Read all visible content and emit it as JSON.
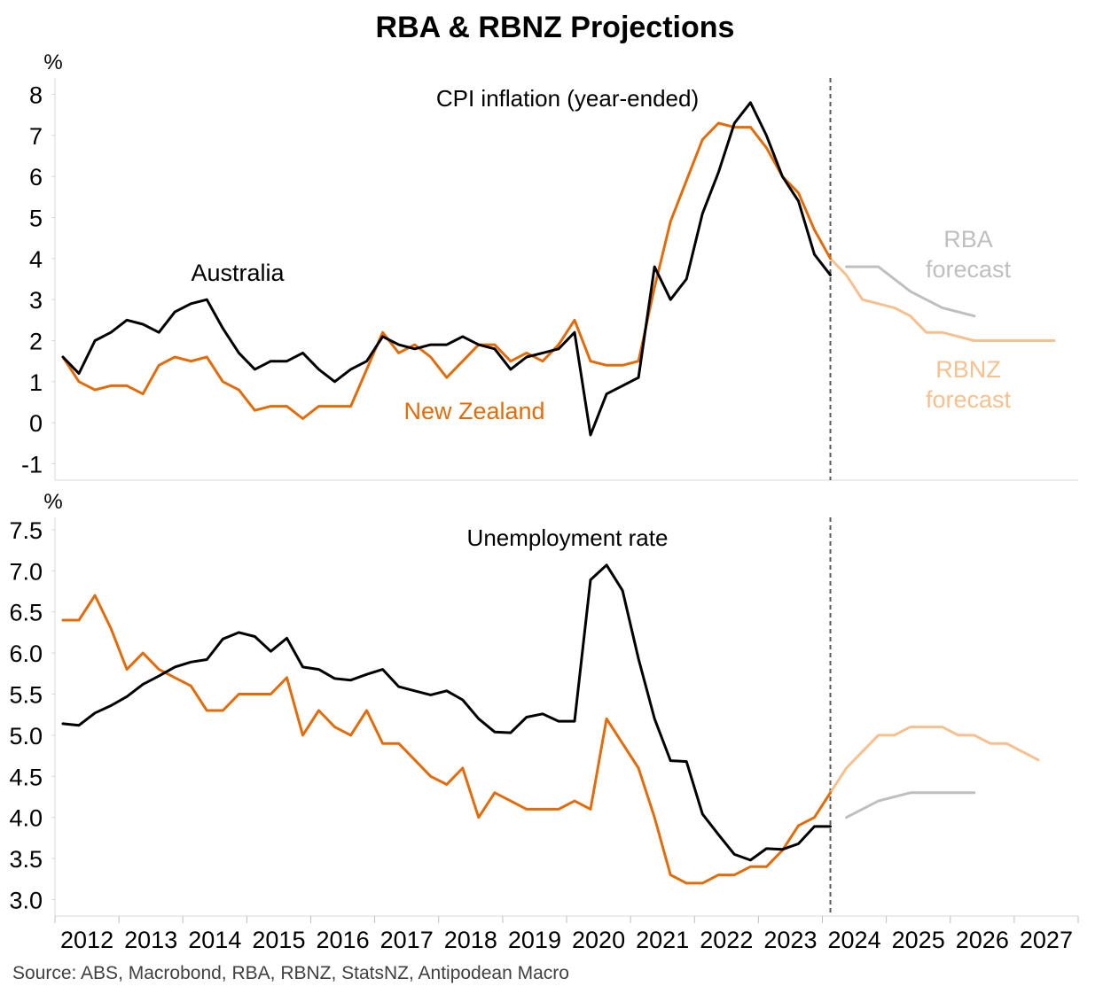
{
  "title": "RBA & RBNZ Projections",
  "source": "Source: ABS, Macrobond, RBA, RBNZ, StatsNZ, Antipodean Macro",
  "colors": {
    "australia": "#000000",
    "new_zealand": "#e36c0a",
    "rba_forecast": "#bfbfbf",
    "rbnz_forecast": "#f6c08f",
    "divider": "#595959",
    "axis": "#d9d9d9"
  },
  "x_tick_labels": [
    "2012",
    "2013",
    "2014",
    "2015",
    "2016",
    "2017",
    "2018",
    "2019",
    "2020",
    "2021",
    "2022",
    "2023",
    "2024",
    "2025",
    "2026",
    "2027"
  ],
  "chart_data": [
    {
      "type": "line",
      "title": "CPI inflation (year-ended)",
      "unit": "%",
      "xlim": [
        2011.875,
        2027.875
      ],
      "ylim": [
        -1.4,
        8.4
      ],
      "yticks": [
        "-1",
        "0",
        "1",
        "2",
        "3",
        "4",
        "5",
        "6",
        "7",
        "8"
      ],
      "ytick_values": [
        -1,
        0,
        1,
        2,
        3,
        4,
        5,
        6,
        7,
        8
      ],
      "forecast_start": 2024.0,
      "series": [
        {
          "name": "Australia",
          "color": "#000000",
          "start": 2012.0,
          "step": 0.25,
          "values": [
            1.6,
            1.2,
            2.0,
            2.2,
            2.5,
            2.4,
            2.2,
            2.7,
            2.9,
            3.0,
            2.3,
            1.7,
            1.3,
            1.5,
            1.5,
            1.7,
            1.3,
            1.0,
            1.3,
            1.5,
            2.1,
            1.9,
            1.8,
            1.9,
            1.9,
            2.1,
            1.9,
            1.8,
            1.3,
            1.6,
            1.7,
            1.8,
            2.2,
            -0.3,
            0.7,
            0.9,
            1.1,
            3.8,
            3.0,
            3.5,
            5.1,
            6.1,
            7.3,
            7.8,
            7.0,
            6.0,
            5.4,
            4.1,
            3.6
          ]
        },
        {
          "name": "New Zealand",
          "color": "#e36c0a",
          "start": 2012.0,
          "step": 0.25,
          "values": [
            1.6,
            1.0,
            0.8,
            0.9,
            0.9,
            0.7,
            1.4,
            1.6,
            1.5,
            1.6,
            1.0,
            0.8,
            0.3,
            0.4,
            0.4,
            0.1,
            0.4,
            0.4,
            0.4,
            1.3,
            2.2,
            1.7,
            1.9,
            1.6,
            1.1,
            1.5,
            1.9,
            1.9,
            1.5,
            1.7,
            1.5,
            1.9,
            2.5,
            1.5,
            1.4,
            1.4,
            1.5,
            3.3,
            4.9,
            5.9,
            6.9,
            7.3,
            7.2,
            7.2,
            6.7,
            6.0,
            5.6,
            4.7,
            4.0
          ]
        },
        {
          "name": "RBA forecast",
          "color": "#bfbfbf",
          "start": 2024.25,
          "step": 0.5,
          "values": [
            3.8,
            3.8,
            3.2,
            2.8,
            2.6
          ]
        },
        {
          "name": "RBNZ forecast",
          "color": "#f6c08f",
          "start": 2024.0,
          "step": 0.25,
          "values": [
            4.0,
            3.6,
            3.0,
            2.9,
            2.8,
            2.6,
            2.2,
            2.2,
            2.1,
            2.0,
            2.0,
            2.0,
            2.0,
            2.0,
            2.0
          ]
        }
      ],
      "labels": {
        "australia": "Australia",
        "new_zealand": "New Zealand",
        "rba_line1": "RBA",
        "rba_line2": "forecast",
        "rbnz_line1": "RBNZ",
        "rbnz_line2": "forecast"
      }
    },
    {
      "type": "line",
      "title": "Unemployment rate",
      "unit": "%",
      "xlim": [
        2011.875,
        2027.875
      ],
      "ylim": [
        2.8,
        7.65
      ],
      "yticks": [
        "3.0",
        "3.5",
        "4.0",
        "4.5",
        "5.0",
        "5.5",
        "6.0",
        "6.5",
        "7.0",
        "7.5"
      ],
      "ytick_values": [
        3.0,
        3.5,
        4.0,
        4.5,
        5.0,
        5.5,
        6.0,
        6.5,
        7.0,
        7.5
      ],
      "forecast_start": 2024.0,
      "series": [
        {
          "name": "Australia",
          "color": "#000000",
          "start": 2012.0,
          "step": 0.25,
          "values": [
            5.14,
            5.12,
            5.27,
            5.36,
            5.47,
            5.62,
            5.72,
            5.83,
            5.89,
            5.92,
            6.17,
            6.25,
            6.2,
            6.02,
            6.18,
            5.83,
            5.8,
            5.69,
            5.67,
            5.74,
            5.8,
            5.59,
            5.54,
            5.49,
            5.54,
            5.43,
            5.2,
            5.04,
            5.03,
            5.22,
            5.26,
            5.17,
            5.17,
            6.89,
            7.07,
            6.76,
            5.93,
            5.2,
            4.69,
            4.68,
            4.04,
            3.79,
            3.55,
            3.48,
            3.62,
            3.61,
            3.68,
            3.89,
            3.89
          ]
        },
        {
          "name": "New Zealand",
          "color": "#e36c0a",
          "start": 2012.0,
          "step": 0.25,
          "values": [
            6.4,
            6.4,
            6.7,
            6.3,
            5.8,
            6.0,
            5.8,
            5.7,
            5.6,
            5.3,
            5.3,
            5.5,
            5.5,
            5.5,
            5.7,
            5.0,
            5.3,
            5.1,
            5.0,
            5.3,
            4.9,
            4.9,
            4.7,
            4.5,
            4.4,
            4.6,
            4.0,
            4.3,
            4.2,
            4.1,
            4.1,
            4.1,
            4.2,
            4.1,
            5.2,
            4.9,
            4.6,
            4.0,
            3.3,
            3.2,
            3.2,
            3.3,
            3.3,
            3.4,
            3.4,
            3.6,
            3.9,
            4.0,
            4.3
          ]
        },
        {
          "name": "RBA forecast",
          "color": "#bfbfbf",
          "start": 2024.25,
          "step": 0.5,
          "values": [
            4.0,
            4.2,
            4.3,
            4.3,
            4.3
          ]
        },
        {
          "name": "RBNZ forecast",
          "color": "#f6c08f",
          "start": 2024.0,
          "step": 0.25,
          "values": [
            4.3,
            4.6,
            4.8,
            5.0,
            5.0,
            5.1,
            5.1,
            5.1,
            5.0,
            5.0,
            4.9,
            4.9,
            4.8,
            4.7
          ]
        }
      ]
    }
  ]
}
